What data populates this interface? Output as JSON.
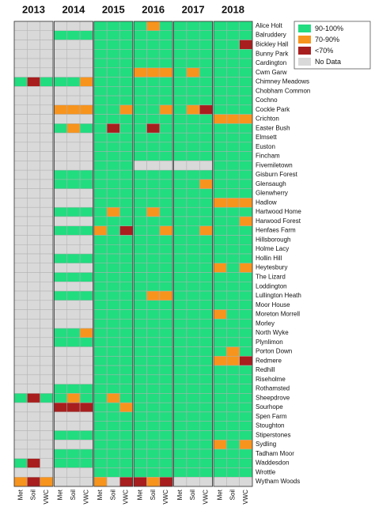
{
  "chart_data": {
    "type": "heatmap",
    "years": [
      "2013",
      "2014",
      "2015",
      "2016",
      "2017",
      "2018"
    ],
    "columns": [
      "Met",
      "Soil",
      "VWC"
    ],
    "legend": [
      {
        "name": "90-100%",
        "color": "#22dc80"
      },
      {
        "name": "70-90%",
        "color": "#f7941d"
      },
      {
        "name": "<70%",
        "color": "#a81e1e"
      },
      {
        "name": "No Data",
        "color": "#d9d9d9"
      }
    ],
    "sites": [
      "Alice Holt",
      "Balruddery",
      "Bickley Hall",
      "Bunny Park",
      "Cardington",
      "Cwm Garw",
      "Chimney Meadows",
      "Chobham Common",
      "Cochno",
      "Cockle Park",
      "Crichton",
      "Easter Bush",
      "Elmsett",
      "Euston",
      "Fincham",
      "Fivemiletown",
      "Gisburn Forest",
      "Glensaugh",
      "Glenwherry",
      "Hadlow",
      "Hartwood Home",
      "Harwood Forest",
      "Henfaes Farm",
      "Hillsborough",
      "Holme Lacy",
      "Hollin Hill",
      "Heytesbury",
      "The Lizard",
      "Loddington",
      "Lullington Heath",
      "Moor House",
      "Moreton Morrell",
      "Morley",
      "North Wyke",
      "Plynlimon",
      "Porton Down",
      "Redmere",
      "Redhill",
      "Riseholme",
      "Rothamsted",
      "Sheepdrove",
      "Sourhope",
      "Spen Farm",
      "Stoughton",
      "Stiperstones",
      "Sydling",
      "Tadham Moor",
      "Waddesdon",
      "Wrottle",
      "Wytham Woods"
    ],
    "cells": [
      [
        3,
        3,
        3,
        3,
        3,
        3,
        0,
        0,
        0,
        0,
        1,
        0,
        0,
        0,
        0,
        0,
        0,
        0
      ],
      [
        3,
        3,
        3,
        0,
        0,
        0,
        0,
        0,
        0,
        0,
        0,
        0,
        0,
        0,
        0,
        0,
        0,
        0
      ],
      [
        3,
        3,
        3,
        3,
        3,
        3,
        0,
        0,
        0,
        0,
        0,
        0,
        0,
        0,
        0,
        0,
        0,
        2
      ],
      [
        3,
        3,
        3,
        3,
        3,
        3,
        0,
        0,
        0,
        0,
        0,
        0,
        0,
        0,
        0,
        0,
        0,
        0
      ],
      [
        3,
        3,
        3,
        3,
        3,
        3,
        0,
        0,
        0,
        0,
        0,
        0,
        0,
        0,
        0,
        0,
        0,
        0
      ],
      [
        3,
        3,
        3,
        3,
        3,
        3,
        0,
        0,
        0,
        1,
        1,
        1,
        0,
        1,
        0,
        0,
        0,
        0
      ],
      [
        0,
        2,
        0,
        0,
        0,
        1,
        0,
        0,
        0,
        0,
        0,
        0,
        0,
        0,
        0,
        0,
        0,
        0
      ],
      [
        3,
        3,
        3,
        3,
        3,
        3,
        0,
        0,
        0,
        0,
        0,
        0,
        0,
        0,
        0,
        0,
        0,
        0
      ],
      [
        3,
        3,
        3,
        3,
        3,
        3,
        0,
        0,
        0,
        0,
        0,
        0,
        0,
        0,
        0,
        0,
        0,
        0
      ],
      [
        3,
        3,
        3,
        1,
        1,
        1,
        0,
        0,
        1,
        0,
        0,
        1,
        0,
        1,
        2,
        0,
        0,
        0
      ],
      [
        3,
        3,
        3,
        3,
        3,
        3,
        0,
        0,
        0,
        0,
        0,
        0,
        0,
        0,
        0,
        1,
        1,
        1
      ],
      [
        3,
        3,
        3,
        0,
        1,
        0,
        0,
        2,
        0,
        0,
        2,
        0,
        0,
        0,
        0,
        0,
        0,
        0
      ],
      [
        3,
        3,
        3,
        3,
        3,
        3,
        0,
        0,
        0,
        0,
        0,
        0,
        0,
        0,
        0,
        0,
        0,
        0
      ],
      [
        3,
        3,
        3,
        3,
        3,
        3,
        0,
        0,
        0,
        0,
        0,
        0,
        0,
        0,
        0,
        0,
        0,
        0
      ],
      [
        3,
        3,
        3,
        3,
        3,
        3,
        0,
        0,
        0,
        0,
        0,
        0,
        0,
        0,
        0,
        0,
        0,
        0
      ],
      [
        3,
        3,
        3,
        3,
        3,
        3,
        0,
        0,
        0,
        3,
        3,
        3,
        3,
        3,
        3,
        0,
        0,
        0
      ],
      [
        3,
        3,
        3,
        0,
        0,
        0,
        0,
        0,
        0,
        0,
        0,
        0,
        0,
        0,
        0,
        0,
        0,
        0
      ],
      [
        3,
        3,
        3,
        0,
        0,
        0,
        0,
        0,
        0,
        0,
        0,
        0,
        0,
        0,
        1,
        0,
        0,
        0
      ],
      [
        3,
        3,
        3,
        3,
        3,
        3,
        0,
        0,
        0,
        0,
        0,
        0,
        0,
        0,
        0,
        0,
        0,
        0
      ],
      [
        3,
        3,
        3,
        3,
        3,
        3,
        0,
        0,
        0,
        0,
        0,
        0,
        0,
        0,
        0,
        1,
        1,
        1
      ],
      [
        3,
        3,
        3,
        0,
        0,
        0,
        0,
        1,
        0,
        0,
        1,
        0,
        0,
        0,
        0,
        0,
        0,
        0
      ],
      [
        3,
        3,
        3,
        3,
        3,
        3,
        0,
        0,
        0,
        0,
        0,
        0,
        0,
        0,
        0,
        0,
        0,
        1
      ],
      [
        3,
        3,
        3,
        0,
        0,
        0,
        1,
        0,
        2,
        0,
        0,
        1,
        0,
        0,
        1,
        0,
        0,
        0
      ],
      [
        3,
        3,
        3,
        3,
        3,
        3,
        0,
        0,
        0,
        0,
        0,
        0,
        0,
        0,
        0,
        0,
        0,
        0
      ],
      [
        3,
        3,
        3,
        3,
        3,
        3,
        0,
        0,
        0,
        0,
        0,
        0,
        0,
        0,
        0,
        0,
        0,
        0
      ],
      [
        3,
        3,
        3,
        0,
        0,
        0,
        0,
        0,
        0,
        0,
        0,
        0,
        0,
        0,
        0,
        0,
        0,
        0
      ],
      [
        3,
        3,
        3,
        3,
        3,
        3,
        0,
        0,
        0,
        0,
        0,
        0,
        0,
        0,
        0,
        1,
        0,
        1
      ],
      [
        3,
        3,
        3,
        0,
        0,
        0,
        0,
        0,
        0,
        0,
        0,
        0,
        0,
        0,
        0,
        0,
        0,
        0
      ],
      [
        3,
        3,
        3,
        3,
        3,
        3,
        0,
        0,
        0,
        0,
        0,
        0,
        0,
        0,
        0,
        0,
        0,
        0
      ],
      [
        3,
        3,
        3,
        0,
        0,
        0,
        0,
        0,
        0,
        0,
        1,
        1,
        0,
        0,
        0,
        0,
        0,
        0
      ],
      [
        3,
        3,
        3,
        3,
        3,
        3,
        0,
        0,
        0,
        0,
        0,
        0,
        0,
        0,
        0,
        0,
        0,
        0
      ],
      [
        3,
        3,
        3,
        3,
        3,
        3,
        0,
        0,
        0,
        0,
        0,
        0,
        0,
        0,
        0,
        1,
        0,
        0
      ],
      [
        3,
        3,
        3,
        3,
        3,
        3,
        0,
        0,
        0,
        0,
        0,
        0,
        0,
        0,
        0,
        0,
        0,
        0
      ],
      [
        3,
        3,
        3,
        0,
        0,
        1,
        0,
        0,
        0,
        0,
        0,
        0,
        0,
        0,
        0,
        0,
        0,
        0
      ],
      [
        3,
        3,
        3,
        0,
        0,
        0,
        0,
        0,
        0,
        0,
        0,
        0,
        0,
        0,
        0,
        0,
        0,
        0
      ],
      [
        3,
        3,
        3,
        3,
        3,
        3,
        0,
        0,
        0,
        0,
        0,
        0,
        0,
        0,
        0,
        0,
        1,
        0
      ],
      [
        3,
        3,
        3,
        3,
        3,
        3,
        0,
        0,
        0,
        0,
        0,
        0,
        0,
        0,
        0,
        1,
        1,
        2
      ],
      [
        3,
        3,
        3,
        3,
        3,
        3,
        0,
        0,
        0,
        0,
        0,
        0,
        0,
        0,
        0,
        0,
        0,
        0
      ],
      [
        3,
        3,
        3,
        3,
        3,
        3,
        0,
        0,
        0,
        0,
        0,
        0,
        0,
        0,
        0,
        0,
        0,
        0
      ],
      [
        3,
        3,
        3,
        0,
        0,
        0,
        0,
        0,
        0,
        0,
        0,
        0,
        0,
        0,
        0,
        0,
        0,
        0
      ],
      [
        0,
        2,
        0,
        0,
        1,
        0,
        0,
        1,
        0,
        0,
        0,
        0,
        0,
        0,
        0,
        0,
        0,
        0
      ],
      [
        3,
        3,
        3,
        2,
        2,
        2,
        0,
        0,
        1,
        0,
        0,
        0,
        0,
        0,
        0,
        0,
        0,
        0
      ],
      [
        3,
        3,
        3,
        3,
        3,
        3,
        0,
        0,
        0,
        0,
        0,
        0,
        0,
        0,
        0,
        0,
        0,
        0
      ],
      [
        3,
        3,
        3,
        3,
        3,
        3,
        0,
        0,
        0,
        0,
        0,
        0,
        0,
        0,
        0,
        0,
        0,
        0
      ],
      [
        3,
        3,
        3,
        0,
        0,
        0,
        0,
        0,
        0,
        0,
        0,
        0,
        0,
        0,
        0,
        0,
        0,
        0
      ],
      [
        3,
        3,
        3,
        3,
        3,
        3,
        0,
        0,
        0,
        0,
        0,
        0,
        0,
        0,
        0,
        1,
        0,
        1
      ],
      [
        3,
        3,
        3,
        0,
        0,
        0,
        0,
        0,
        0,
        0,
        0,
        0,
        0,
        0,
        0,
        0,
        0,
        0
      ],
      [
        0,
        2,
        3,
        0,
        0,
        0,
        0,
        0,
        0,
        0,
        0,
        0,
        0,
        0,
        0,
        0,
        0,
        0
      ],
      [
        3,
        3,
        3,
        3,
        3,
        3,
        0,
        0,
        0,
        0,
        0,
        0,
        0,
        0,
        0,
        0,
        0,
        0
      ],
      [
        1,
        2,
        1,
        3,
        3,
        3,
        1,
        3,
        2,
        2,
        1,
        2,
        3,
        3,
        3,
        3,
        3,
        3
      ]
    ]
  }
}
